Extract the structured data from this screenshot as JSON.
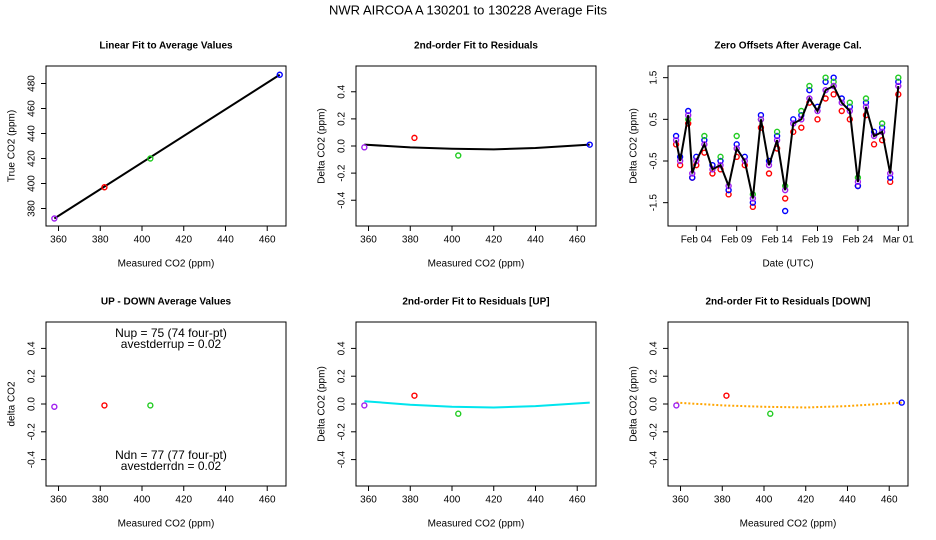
{
  "title": "NWR   AIRCOA A   130201 to 130228   Average Fits",
  "chart_data": [
    {
      "type": "scatter",
      "title": "Linear Fit to Average Values",
      "x_label": "Measured CO2 (ppm)",
      "y_label": "True CO2 (ppm)",
      "xlim": [
        354,
        469
      ],
      "ylim": [
        366,
        494
      ],
      "xticks": [
        360,
        380,
        400,
        420,
        440,
        460
      ],
      "yticks": [
        380,
        400,
        420,
        440,
        460,
        480
      ],
      "series": [
        {
          "style": "line",
          "color": "#000000",
          "x": [
            358,
            466
          ],
          "values": [
            372,
            487
          ]
        },
        {
          "style": "points",
          "color": "#a020f0",
          "x": [
            358
          ],
          "values": [
            372
          ]
        },
        {
          "style": "points",
          "color": "#ff0000",
          "x": [
            382
          ],
          "values": [
            397
          ]
        },
        {
          "style": "points",
          "color": "#22cc22",
          "x": [
            404
          ],
          "values": [
            420
          ]
        },
        {
          "style": "points",
          "color": "#0000ff",
          "x": [
            466
          ],
          "values": [
            487
          ]
        }
      ]
    },
    {
      "type": "scatter",
      "title": "2nd-order Fit to Residuals",
      "x_label": "Measured CO2 (ppm)",
      "y_label": "Delta CO2 (ppm)",
      "xlim": [
        354,
        469
      ],
      "ylim": [
        -0.59,
        0.59
      ],
      "xticks": [
        360,
        380,
        400,
        420,
        440,
        460
      ],
      "yticks": [
        -0.4,
        -0.2,
        {
          "value": 0,
          "label": "0.0"
        },
        0.2,
        0.4
      ],
      "series": [
        {
          "style": "line",
          "color": "#000000",
          "x": [
            358,
            380,
            400,
            420,
            440,
            466
          ],
          "values": [
            0.01,
            -0.01,
            -0.02,
            -0.025,
            -0.015,
            0.01
          ]
        },
        {
          "style": "points",
          "color": "#a020f0",
          "x": [
            358
          ],
          "values": [
            -0.01
          ]
        },
        {
          "style": "points",
          "color": "#ff0000",
          "x": [
            382
          ],
          "values": [
            0.06
          ]
        },
        {
          "style": "points",
          "color": "#22cc22",
          "x": [
            403
          ],
          "values": [
            -0.07
          ]
        },
        {
          "style": "points",
          "color": "#0000ff",
          "x": [
            466
          ],
          "values": [
            0.01
          ]
        }
      ]
    },
    {
      "type": "scatter",
      "title": "Zero Offsets After Average Cal.",
      "x_label": "Date (UTC)",
      "y_label": "Delta CO2 (ppm)",
      "xlim": [
        0.5,
        30.2
      ],
      "ylim": [
        -2.06,
        1.78
      ],
      "xticks": [
        {
          "value": 4,
          "label": "Feb 04"
        },
        {
          "value": 9,
          "label": "Feb 09"
        },
        {
          "value": 14,
          "label": "Feb 14"
        },
        {
          "value": 19,
          "label": "Feb 19"
        },
        {
          "value": 24,
          "label": "Feb 24"
        },
        {
          "value": 29,
          "label": "Mar 01"
        }
      ],
      "yticks": [
        -1.5,
        -0.5,
        0.5,
        1.5
      ],
      "x": [
        1.5,
        2,
        3,
        3.5,
        4,
        5,
        6,
        7,
        8,
        9,
        10,
        11,
        12,
        13,
        14,
        15,
        16,
        17,
        18,
        19,
        20,
        21,
        22,
        23,
        24,
        25,
        26,
        27,
        28,
        29
      ],
      "series": [
        {
          "style": "points",
          "color": "#ff0000",
          "values": [
            -0.1,
            -0.6,
            0.4,
            -0.9,
            -0.6,
            -0.3,
            -0.8,
            -0.7,
            -1.3,
            -0.4,
            -0.6,
            -1.6,
            0.3,
            -0.8,
            -0.2,
            -1.4,
            0.2,
            0.3,
            0.9,
            0.5,
            1.0,
            1.1,
            0.7,
            0.5,
            -1.1,
            0.6,
            -0.1,
            0.0,
            -1.0,
            1.1
          ]
        },
        {
          "style": "points",
          "color": "#0000ff",
          "values": [
            0.1,
            -0.4,
            0.7,
            -0.9,
            -0.4,
            0.0,
            -0.6,
            -0.5,
            -1.2,
            -0.1,
            -0.4,
            -1.5,
            0.6,
            -0.5,
            0.1,
            -1.7,
            0.5,
            0.6,
            1.2,
            0.8,
            1.4,
            1.5,
            1.0,
            0.8,
            -1.1,
            0.9,
            0.2,
            0.3,
            -0.9,
            1.4
          ]
        },
        {
          "style": "points",
          "color": "#22cc22",
          "values": [
            null,
            null,
            0.5,
            null,
            null,
            0.1,
            null,
            -0.4,
            null,
            0.1,
            null,
            -1.3,
            0.5,
            null,
            0.2,
            -1.1,
            null,
            0.7,
            1.3,
            null,
            1.5,
            1.4,
            null,
            0.9,
            -0.9,
            1.0,
            null,
            0.4,
            null,
            1.5
          ]
        },
        {
          "style": "points",
          "color": "#a020f0",
          "values": [
            0.0,
            -0.5,
            0.6,
            -0.8,
            -0.5,
            -0.1,
            -0.7,
            -0.6,
            -1.1,
            -0.2,
            -0.5,
            -1.4,
            0.5,
            -0.6,
            0.0,
            -1.2,
            0.4,
            0.5,
            1.0,
            0.7,
            1.2,
            1.3,
            0.9,
            0.7,
            -1.0,
            0.8,
            0.1,
            0.2,
            -0.8,
            1.3
          ]
        },
        {
          "style": "line",
          "color": "#000000",
          "values": [
            0.0,
            -0.5,
            0.6,
            -0.8,
            -0.5,
            -0.1,
            -0.7,
            -0.6,
            -1.1,
            -0.2,
            -0.5,
            -1.4,
            0.5,
            -0.6,
            0.0,
            -1.2,
            0.4,
            0.5,
            1.0,
            0.7,
            1.2,
            1.3,
            0.9,
            0.7,
            -1.0,
            0.8,
            0.1,
            0.2,
            -0.8,
            1.3
          ]
        }
      ]
    },
    {
      "type": "scatter",
      "title": "UP - DOWN Average Values",
      "x_label": "Measured CO2 (ppm)",
      "y_label": "delta CO2",
      "xlim": [
        354,
        469
      ],
      "ylim": [
        -0.59,
        0.59
      ],
      "xticks": [
        360,
        380,
        400,
        420,
        440,
        460
      ],
      "yticks": [
        -0.4,
        -0.2,
        {
          "value": 0,
          "label": "0.0"
        },
        0.2,
        0.4
      ],
      "annotations": [
        "Nup = 75 (74 four-pt)",
        "avestderrup =  0.02",
        "Ndn = 77 (77 four-pt)",
        "avestderrdn =  0.02"
      ],
      "series": [
        {
          "style": "points",
          "color": "#a020f0",
          "x": [
            358
          ],
          "values": [
            -0.02
          ]
        },
        {
          "style": "points",
          "color": "#ff0000",
          "x": [
            382
          ],
          "values": [
            -0.01
          ]
        },
        {
          "style": "points",
          "color": "#22cc22",
          "x": [
            404
          ],
          "values": [
            -0.01
          ]
        }
      ]
    },
    {
      "type": "scatter",
      "title": "2nd-order Fit to Residuals [UP]",
      "x_label": "Measured CO2 (ppm)",
      "y_label": "Delta CO2 (ppm)",
      "xlim": [
        354,
        469
      ],
      "ylim": [
        -0.59,
        0.59
      ],
      "xticks": [
        360,
        380,
        400,
        420,
        440,
        460
      ],
      "yticks": [
        -0.4,
        -0.2,
        {
          "value": 0,
          "label": "0.0"
        },
        0.2,
        0.4
      ],
      "series": [
        {
          "style": "line",
          "color": "#00e5ee",
          "x": [
            358,
            380,
            400,
            420,
            440,
            466
          ],
          "values": [
            0.02,
            -0.005,
            -0.02,
            -0.025,
            -0.015,
            0.01
          ]
        },
        {
          "style": "points",
          "color": "#a020f0",
          "x": [
            358
          ],
          "values": [
            -0.01
          ]
        },
        {
          "style": "points",
          "color": "#ff0000",
          "x": [
            382
          ],
          "values": [
            0.06
          ]
        },
        {
          "style": "points",
          "color": "#22cc22",
          "x": [
            403
          ],
          "values": [
            -0.07
          ]
        }
      ]
    },
    {
      "type": "scatter",
      "title": "2nd-order Fit to Residuals [DOWN]",
      "x_label": "Measured CO2 (ppm)",
      "y_label": "Delta CO2 (ppm)",
      "xlim": [
        354,
        469
      ],
      "ylim": [
        -0.59,
        0.59
      ],
      "xticks": [
        360,
        380,
        400,
        420,
        440,
        460
      ],
      "yticks": [
        -0.4,
        -0.2,
        {
          "value": 0,
          "label": "0.0"
        },
        0.2,
        0.4
      ],
      "series": [
        {
          "style": "line",
          "color": "#ffa500",
          "dash": true,
          "x": [
            358,
            380,
            400,
            420,
            440,
            466
          ],
          "values": [
            0.01,
            -0.01,
            -0.02,
            -0.025,
            -0.015,
            0.01
          ]
        },
        {
          "style": "points",
          "color": "#a020f0",
          "x": [
            358
          ],
          "values": [
            -0.01
          ]
        },
        {
          "style": "points",
          "color": "#ff0000",
          "x": [
            382
          ],
          "values": [
            0.06
          ]
        },
        {
          "style": "points",
          "color": "#22cc22",
          "x": [
            403
          ],
          "values": [
            -0.07
          ]
        },
        {
          "style": "points",
          "color": "#0000ff",
          "x": [
            466
          ],
          "values": [
            0.01
          ]
        }
      ]
    }
  ]
}
